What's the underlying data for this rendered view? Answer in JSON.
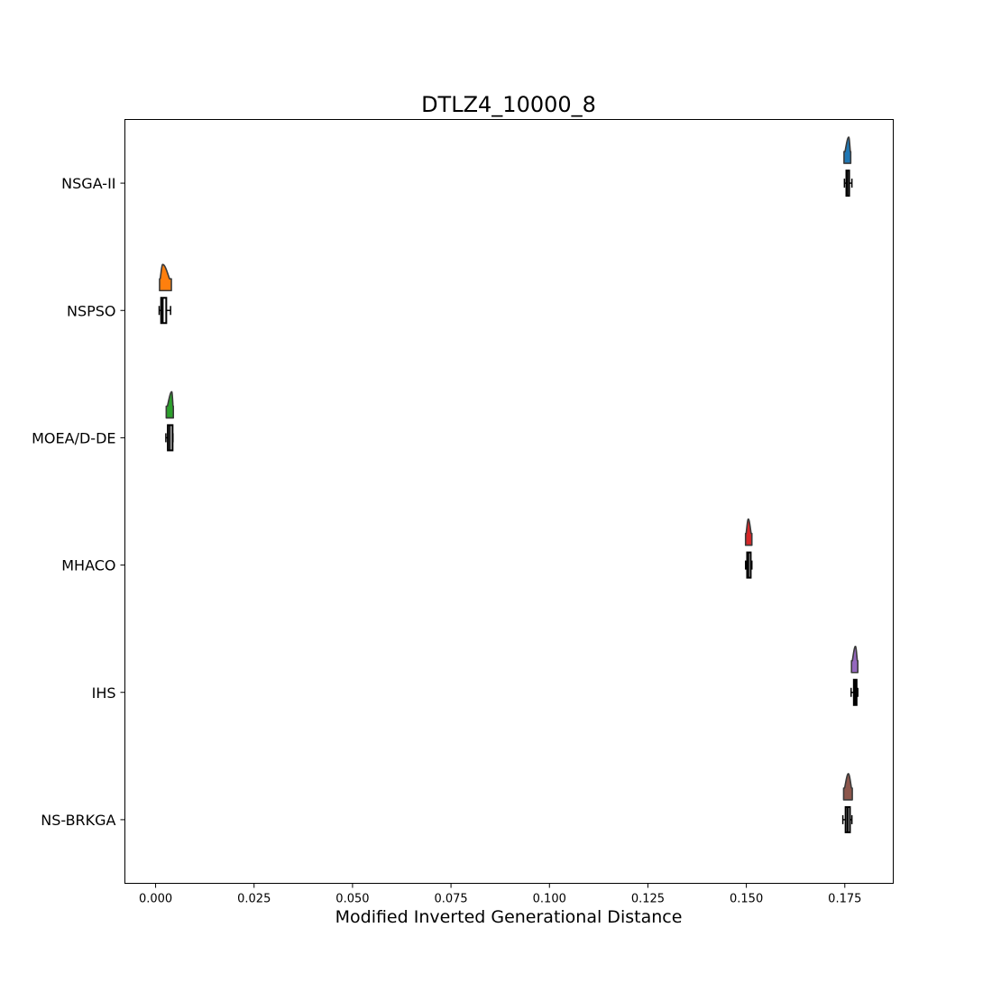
{
  "chart_data": {
    "type": "raincloud",
    "title": "DTLZ4_10000_8",
    "xlabel": "Modified Inverted Generational Distance",
    "ylabel": "",
    "xlim": [
      -0.0078,
      0.1873
    ],
    "xticks": [
      0.0,
      0.025,
      0.05,
      0.075,
      0.1,
      0.125,
      0.15,
      0.175
    ],
    "xtick_labels": [
      "0.000",
      "0.025",
      "0.050",
      "0.075",
      "0.100",
      "0.125",
      "0.150",
      "0.175"
    ],
    "grid": false,
    "categories": [
      "NSGA-II",
      "NSPSO",
      "MOEA/D-DE",
      "MHACO",
      "IHS",
      "NS-BRKGA"
    ],
    "series": [
      {
        "category": "NSGA-II",
        "color": "#1f77b4",
        "min": 0.1749,
        "q1": 0.1754,
        "median": 0.1756,
        "q3": 0.1761,
        "max": 0.1768,
        "peak": 0.176,
        "cloud_min": 0.1748,
        "cloud_max": 0.1765
      },
      {
        "category": "NSPSO",
        "color": "#ff7f0e",
        "min": 0.0009,
        "q1": 0.0014,
        "median": 0.0018,
        "q3": 0.0027,
        "max": 0.0038,
        "peak": 0.0018,
        "cloud_min": 0.001,
        "cloud_max": 0.004
      },
      {
        "category": "MOEA/D-DE",
        "color": "#2ca02c",
        "min": 0.0026,
        "q1": 0.0031,
        "median": 0.0036,
        "q3": 0.0043,
        "max": 0.0044,
        "peak": 0.0041,
        "cloud_min": 0.0027,
        "cloud_max": 0.0045
      },
      {
        "category": "MHACO",
        "color": "#d62728",
        "min": 0.1498,
        "q1": 0.1502,
        "median": 0.1505,
        "q3": 0.1511,
        "max": 0.1514,
        "peak": 0.1505,
        "cloud_min": 0.1498,
        "cloud_max": 0.1514
      },
      {
        "category": "IHS",
        "color": "#9467bd",
        "min": 0.1766,
        "q1": 0.1773,
        "median": 0.1776,
        "q3": 0.1779,
        "max": 0.1783,
        "peak": 0.1777,
        "cloud_min": 0.1767,
        "cloud_max": 0.1783
      },
      {
        "category": "NS-BRKGA",
        "color": "#8c564b",
        "min": 0.1745,
        "q1": 0.1752,
        "median": 0.1757,
        "q3": 0.1763,
        "max": 0.1768,
        "peak": 0.1759,
        "cloud_min": 0.1747,
        "cloud_max": 0.1769
      }
    ]
  }
}
